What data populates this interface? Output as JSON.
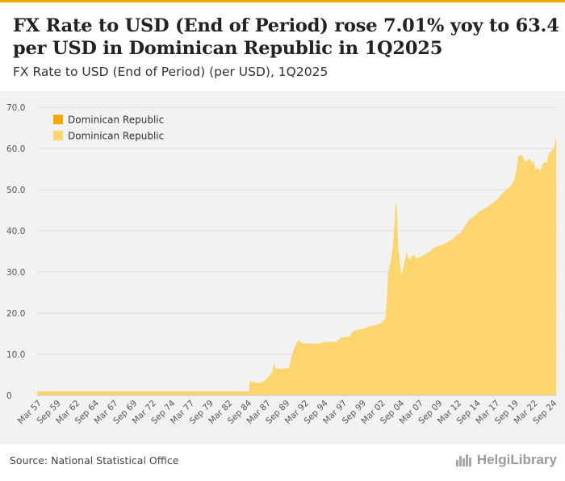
{
  "header": {
    "title": "FX Rate to USD (End of Period) rose 7.01% yoy to 63.4 per USD in Dominican Republic in 1Q2025",
    "subtitle": "FX Rate to USD (End of Period) (per USD), 1Q2025"
  },
  "footer": {
    "source": "Source: National Statistical Office",
    "logo_text": "HelgiLibrary",
    "logo_main": "HelgiLibrary"
  },
  "colors": {
    "accent": "#f5a800",
    "legend_dark": "#f5a800",
    "area_fill": "#fcd56e",
    "grid": "#dddddd",
    "panel": "#f2f2f2"
  },
  "chart_data": {
    "type": "area",
    "title": "FX Rate to USD (End of Period) rose 7.01% yoy to 63.4 per USD in Dominican Republic in 1Q2025",
    "ylabel": "FX Rate to USD (End of Period) (per USD)",
    "xlabel": "",
    "ylim": [
      0,
      70
    ],
    "yticks": [
      "0",
      "10.0",
      "20.0",
      "30.0",
      "40.0",
      "50.0",
      "60.0",
      "70.0"
    ],
    "xlim": [
      1957.0,
      2025.1
    ],
    "xticks": [
      {
        "label": "Mar 57",
        "t": 1957.0
      },
      {
        "label": "Sep 59",
        "t": 1959.5
      },
      {
        "label": "Mar 62",
        "t": 1962.0
      },
      {
        "label": "Sep 64",
        "t": 1964.5
      },
      {
        "label": "Mar 67",
        "t": 1967.0
      },
      {
        "label": "Sep 69",
        "t": 1969.5
      },
      {
        "label": "Mar 72",
        "t": 1972.0
      },
      {
        "label": "Sep 74",
        "t": 1974.5
      },
      {
        "label": "Mar 77",
        "t": 1977.0
      },
      {
        "label": "Sep 79",
        "t": 1979.5
      },
      {
        "label": "Mar 82",
        "t": 1982.0
      },
      {
        "label": "Sep 84",
        "t": 1984.5
      },
      {
        "label": "Mar 87",
        "t": 1987.0
      },
      {
        "label": "Sep 89",
        "t": 1989.5
      },
      {
        "label": "Mar 92",
        "t": 1992.0
      },
      {
        "label": "Sep 94",
        "t": 1994.5
      },
      {
        "label": "Mar 97",
        "t": 1997.0
      },
      {
        "label": "Sep 99",
        "t": 1999.5
      },
      {
        "label": "Mar 02",
        "t": 2002.0
      },
      {
        "label": "Sep 04",
        "t": 2004.5
      },
      {
        "label": "Mar 07",
        "t": 2007.0
      },
      {
        "label": "Sep 09",
        "t": 2009.5
      },
      {
        "label": "Mar 12",
        "t": 2012.0
      },
      {
        "label": "Sep 14",
        "t": 2014.5
      },
      {
        "label": "Mar 17",
        "t": 2017.0
      },
      {
        "label": "Sep 19",
        "t": 2019.5
      },
      {
        "label": "Mar 22",
        "t": 2022.0
      },
      {
        "label": "Sep 24",
        "t": 2024.5
      }
    ],
    "legend": {
      "position": "top-left",
      "entries": [
        "Dominican Republic",
        "Dominican Republic"
      ]
    },
    "grid": true,
    "series": [
      {
        "name": "Dominican Republic",
        "points": [
          [
            1957.0,
            1.0
          ],
          [
            1984.8,
            1.0
          ],
          [
            1984.8,
            3.5
          ],
          [
            1985.3,
            3.3
          ],
          [
            1986.0,
            3.0
          ],
          [
            1986.5,
            3.3
          ],
          [
            1987.0,
            4.0
          ],
          [
            1987.5,
            5.0
          ],
          [
            1987.9,
            6.0
          ],
          [
            1988.0,
            8.0
          ],
          [
            1988.3,
            6.5
          ],
          [
            1989.0,
            6.5
          ],
          [
            1990.0,
            6.6
          ],
          [
            1990.2,
            8.5
          ],
          [
            1990.5,
            10.5
          ],
          [
            1991.0,
            12.8
          ],
          [
            1991.3,
            13.4
          ],
          [
            1991.7,
            12.7
          ],
          [
            1992.5,
            12.6
          ],
          [
            1994.0,
            12.6
          ],
          [
            1994.5,
            13.0
          ],
          [
            1996.0,
            13.0
          ],
          [
            1996.3,
            13.1
          ],
          [
            1996.7,
            14.0
          ],
          [
            1997.0,
            14.1
          ],
          [
            1998.0,
            14.3
          ],
          [
            1998.3,
            15.5
          ],
          [
            1998.7,
            15.8
          ],
          [
            1999.0,
            16.0
          ],
          [
            2000.0,
            16.3
          ],
          [
            2000.5,
            16.8
          ],
          [
            2001.0,
            16.9
          ],
          [
            2001.5,
            17.2
          ],
          [
            2002.0,
            17.5
          ],
          [
            2002.3,
            18.0
          ],
          [
            2002.6,
            18.5
          ],
          [
            2002.8,
            23.0
          ],
          [
            2003.0,
            30.0
          ],
          [
            2003.3,
            32.0
          ],
          [
            2003.6,
            36.0
          ],
          [
            2003.9,
            44.0
          ],
          [
            2004.0,
            47.5
          ],
          [
            2004.15,
            45.0
          ],
          [
            2004.3,
            36.0
          ],
          [
            2004.5,
            33.0
          ],
          [
            2004.7,
            29.0
          ],
          [
            2004.9,
            30.5
          ],
          [
            2005.2,
            33.0
          ],
          [
            2005.4,
            34.8
          ],
          [
            2005.7,
            33.0
          ],
          [
            2006.0,
            33.5
          ],
          [
            2006.3,
            34.2
          ],
          [
            2006.7,
            33.3
          ],
          [
            2007.0,
            33.5
          ],
          [
            2007.5,
            34.0
          ],
          [
            2008.0,
            34.5
          ],
          [
            2008.5,
            35.0
          ],
          [
            2009.0,
            36.0
          ],
          [
            2009.5,
            36.2
          ],
          [
            2010.0,
            36.5
          ],
          [
            2010.5,
            37.0
          ],
          [
            2011.0,
            37.5
          ],
          [
            2011.5,
            38.0
          ],
          [
            2012.0,
            39.0
          ],
          [
            2012.5,
            39.5
          ],
          [
            2013.0,
            41.0
          ],
          [
            2013.5,
            42.5
          ],
          [
            2014.0,
            43.2
          ],
          [
            2014.5,
            44.0
          ],
          [
            2015.0,
            44.8
          ],
          [
            2015.5,
            45.3
          ],
          [
            2016.0,
            45.8
          ],
          [
            2016.5,
            46.5
          ],
          [
            2017.0,
            47.2
          ],
          [
            2017.5,
            48.0
          ],
          [
            2018.0,
            49.3
          ],
          [
            2018.5,
            50.0
          ],
          [
            2019.0,
            50.8
          ],
          [
            2019.5,
            52.2
          ],
          [
            2019.8,
            55.0
          ],
          [
            2020.0,
            58.0
          ],
          [
            2020.3,
            58.5
          ],
          [
            2020.6,
            58.2
          ],
          [
            2020.9,
            56.8
          ],
          [
            2021.2,
            57.0
          ],
          [
            2021.5,
            57.6
          ],
          [
            2021.8,
            56.5
          ],
          [
            2022.0,
            57.0
          ],
          [
            2022.3,
            54.8
          ],
          [
            2022.6,
            55.3
          ],
          [
            2022.9,
            54.5
          ],
          [
            2023.2,
            56.0
          ],
          [
            2023.5,
            56.7
          ],
          [
            2023.8,
            56.5
          ],
          [
            2024.0,
            58.7
          ],
          [
            2024.3,
            59.5
          ],
          [
            2024.6,
            59.7
          ],
          [
            2024.8,
            61.0
          ],
          [
            2025.0,
            63.4
          ]
        ]
      }
    ]
  }
}
